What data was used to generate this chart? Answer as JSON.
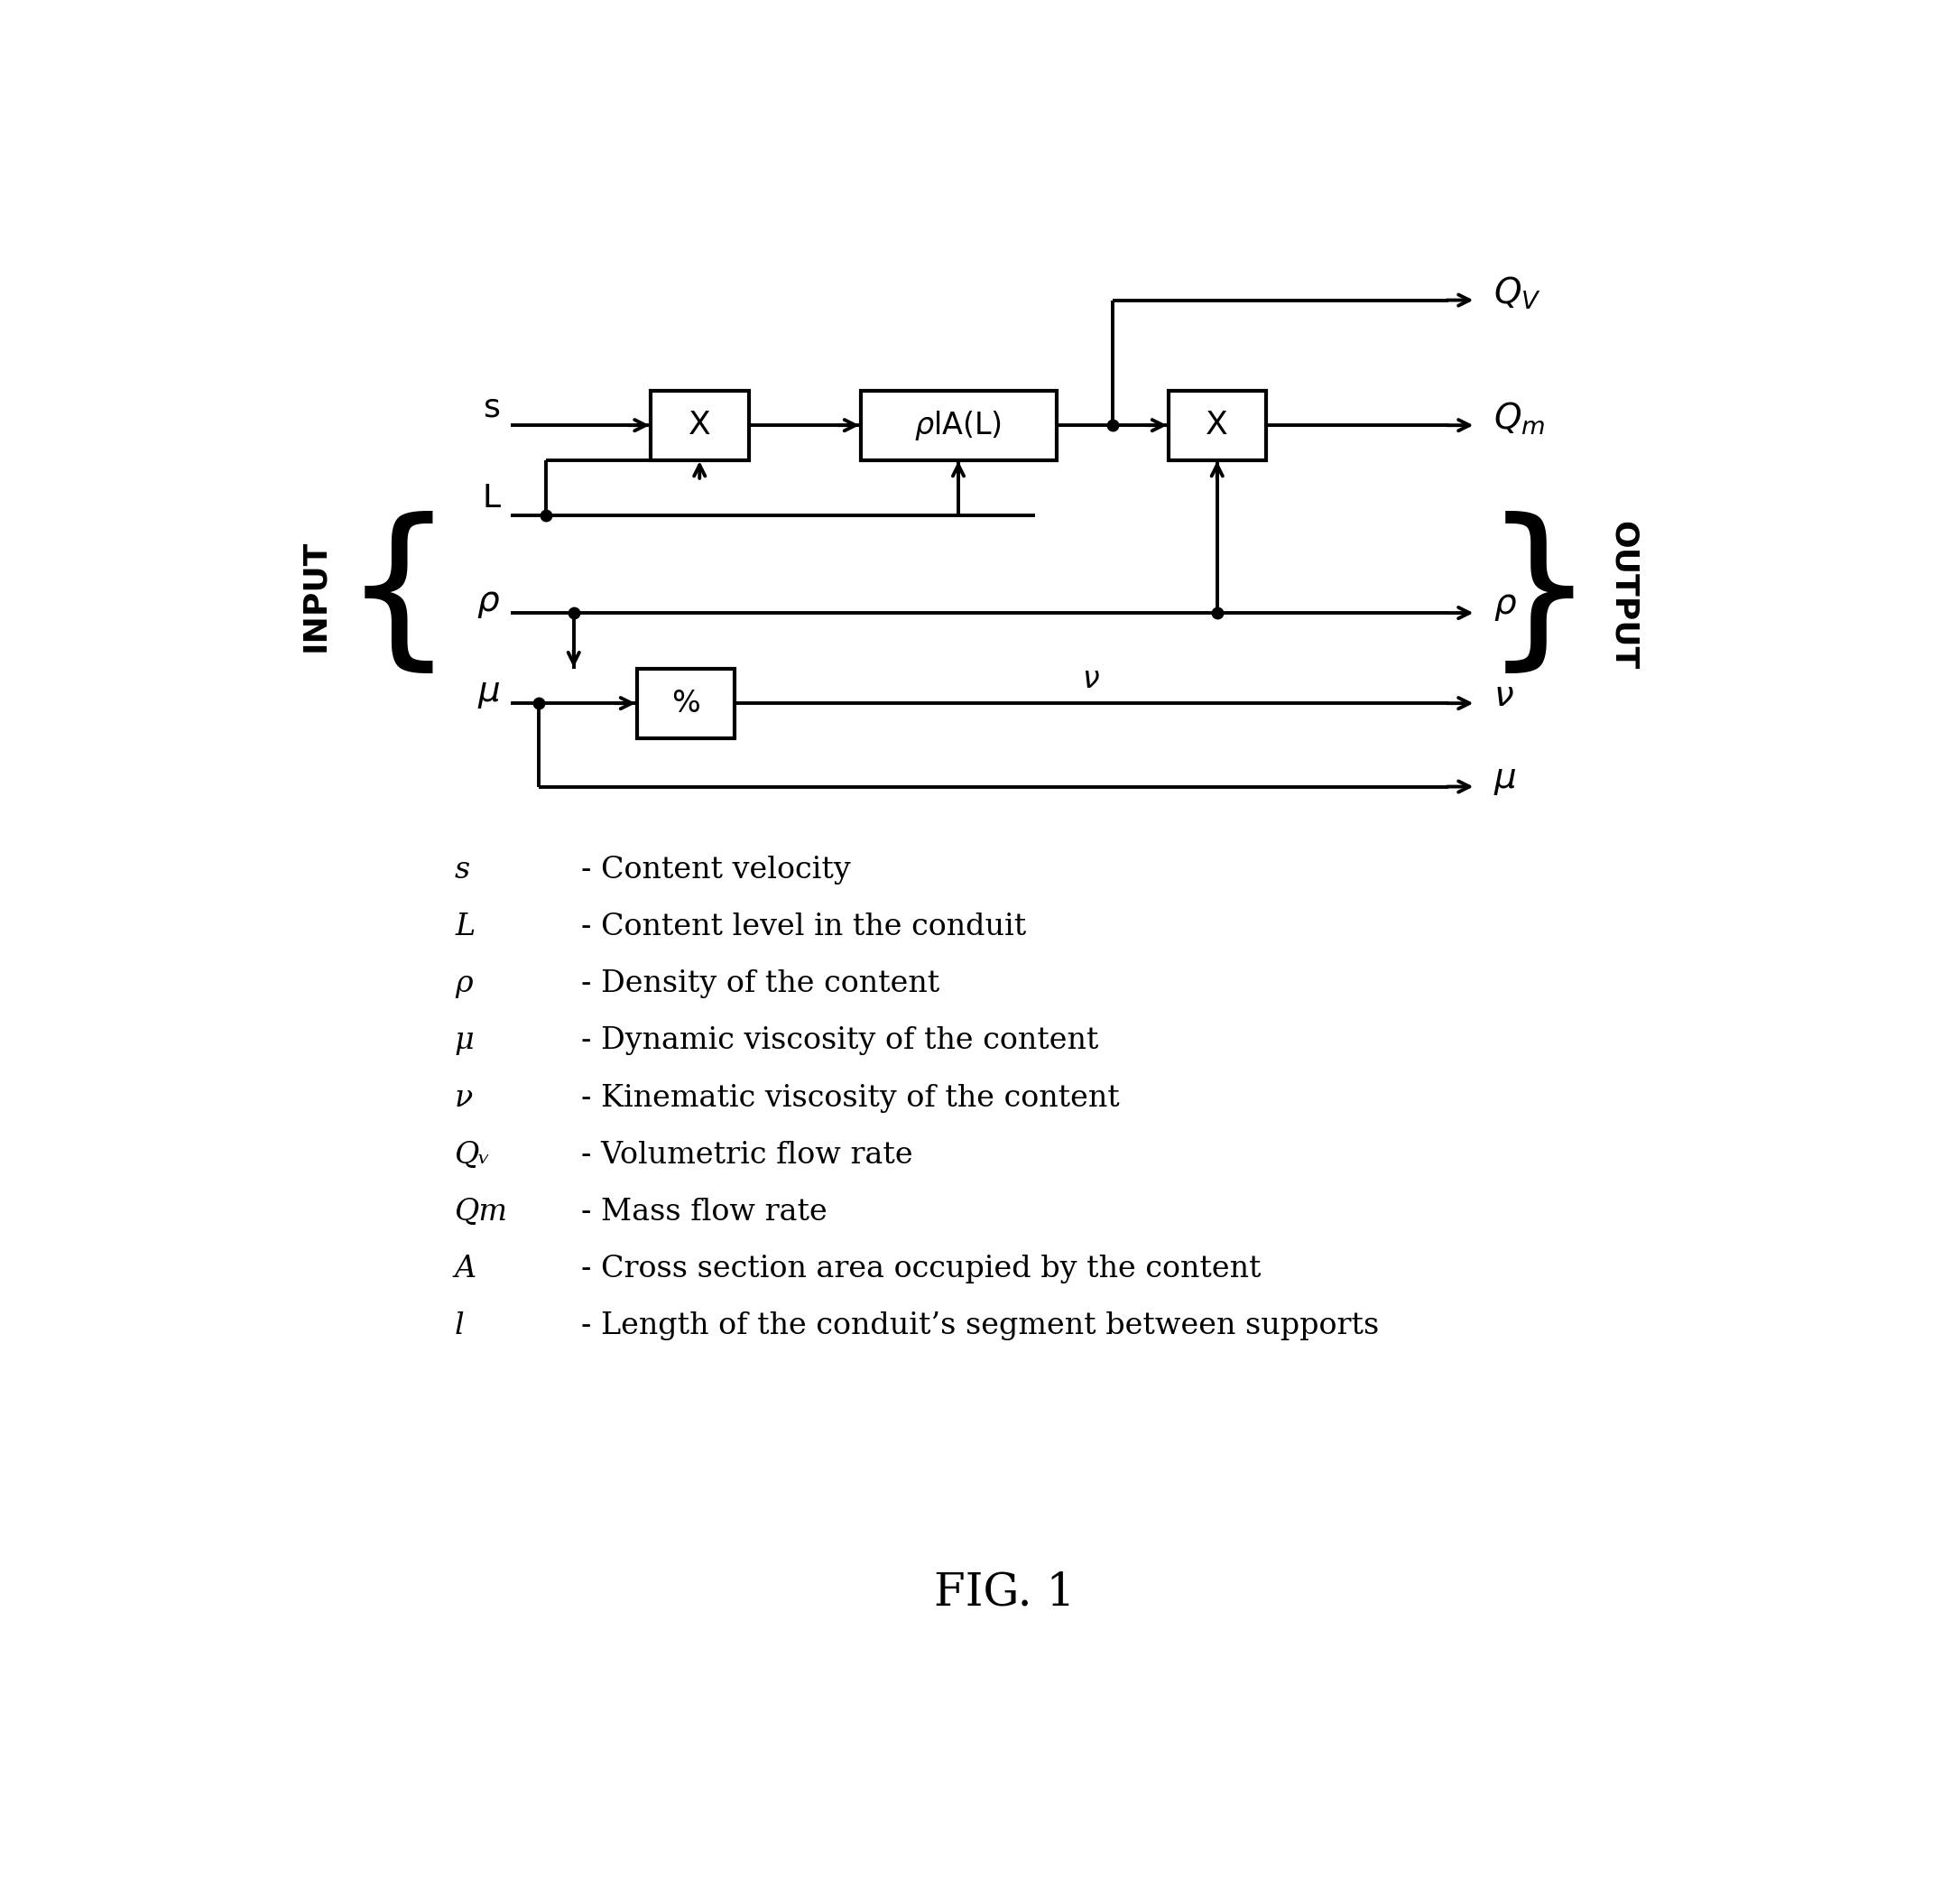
{
  "bg_color": "#ffffff",
  "text_color": "#000000",
  "fig_width": 21.72,
  "fig_height": 21.04,
  "legend_items": [
    [
      "s",
      "- Content velocity"
    ],
    [
      "L",
      "- Content level in the conduit"
    ],
    [
      "ρ",
      "- Density of the content"
    ],
    [
      "μ",
      "- Dynamic viscosity of the content"
    ],
    [
      "ν",
      "- Kinematic viscosity of the content"
    ],
    [
      "Qᵥ",
      "- Volumetric flow rate"
    ],
    [
      "Qm",
      "- Mass flow rate"
    ],
    [
      "A",
      "- Cross section area occupied by the content"
    ],
    [
      "l",
      "- Length of the conduit’s segment between supports"
    ]
  ],
  "fig_label": "FIG. 1"
}
